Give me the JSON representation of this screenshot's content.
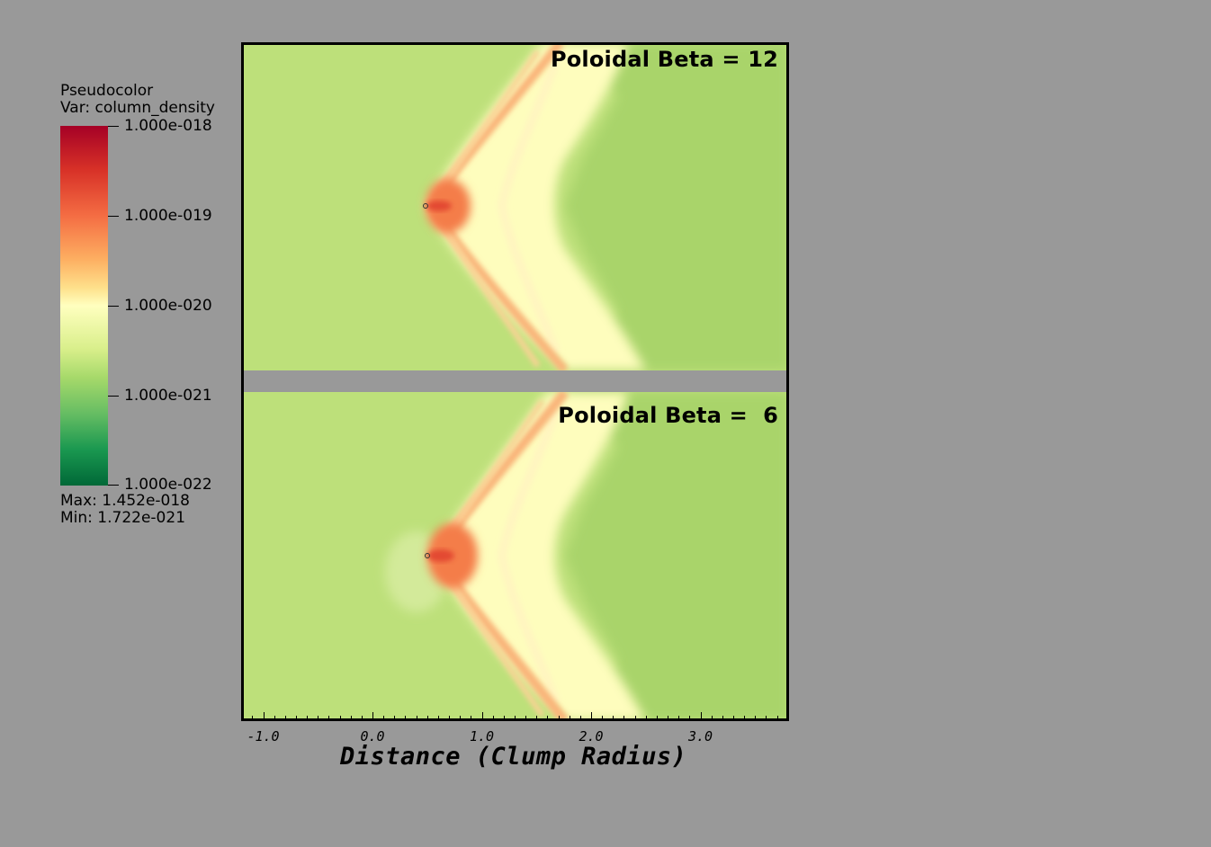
{
  "chart_data": {
    "type": "heatmap",
    "legend": {
      "title": "Pseudocolor",
      "variable": "Var: column_density",
      "max_text": "Max:  1.452e-018",
      "min_text": "Min:  1.722e-021",
      "ticks": [
        "1.000e-018",
        "1.000e-019",
        "1.000e-020",
        "1.000e-021",
        "1.000e-022"
      ],
      "colors": [
        "#a50026",
        "#d73027",
        "#f46d43",
        "#fdae61",
        "#ffffbf",
        "#a6d96a",
        "#66bd63",
        "#1a9850",
        "#006837"
      ],
      "scale": "log",
      "range": [
        1e-22,
        1e-18
      ]
    },
    "panels": [
      {
        "label": "Poloidal Beta = 12"
      },
      {
        "label": "Poloidal Beta =  6"
      }
    ],
    "xaxis": {
      "label": "Distance (Clump Radius)",
      "tick_labels": [
        "-1.0",
        "0.0",
        "1.0",
        "2.0",
        "3.0"
      ],
      "major_ticks": [
        -1.0,
        0.0,
        1.0,
        2.0,
        3.0
      ],
      "range": [
        -1.2,
        3.8
      ]
    }
  }
}
